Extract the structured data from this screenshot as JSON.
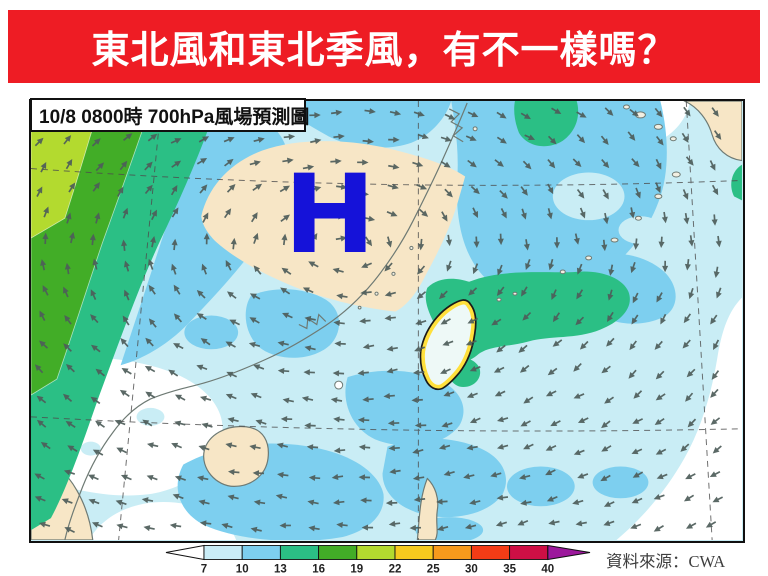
{
  "banner": {
    "title": "東北風和東北季風，有不一樣嗎？",
    "bg_color": "#ee1c24",
    "text_color": "#ffffff"
  },
  "map": {
    "label": "10/8 0800時  700hPa風場預測圖",
    "high_label": "H"
  },
  "colorbar": {
    "ticks": [
      "7",
      "10",
      "13",
      "16",
      "19",
      "22",
      "25",
      "30",
      "35",
      "40"
    ],
    "segment_colors": [
      "#c9edf7",
      "#7dcfef",
      "#2bbf85",
      "#42ad27",
      "#b3da2f",
      "#f6ca1e",
      "#f79a1c",
      "#f33c16",
      "#ce0f45"
    ],
    "tail_color": "#ffffff",
    "head_color": "#9c189c",
    "label_color": "#222222"
  },
  "attribution": {
    "text": "資料來源：CWA"
  },
  "colors": {
    "ocean_base": "#c9edf5",
    "calm_white": "#ffffff",
    "band_7_10": "#c9edf7",
    "band_10_13": "#7dcfef",
    "band_13_16": "#2bbf85",
    "band_16_19": "#42ad27",
    "band_19_22": "#b3da2f",
    "band_40_plus": "#9c189c",
    "land": "#f7e6c6",
    "island_fill": "#f2efe2",
    "coastline": "#6e7a74",
    "grid": "#4d4d4d",
    "arrow": "#4e5d5a",
    "taiwan_fill": "#eef9f7",
    "taiwan_outline": "#ffe03c",
    "taiwan_outline_edge": "#1a1a1a",
    "high_symbol": "#1512d9"
  }
}
